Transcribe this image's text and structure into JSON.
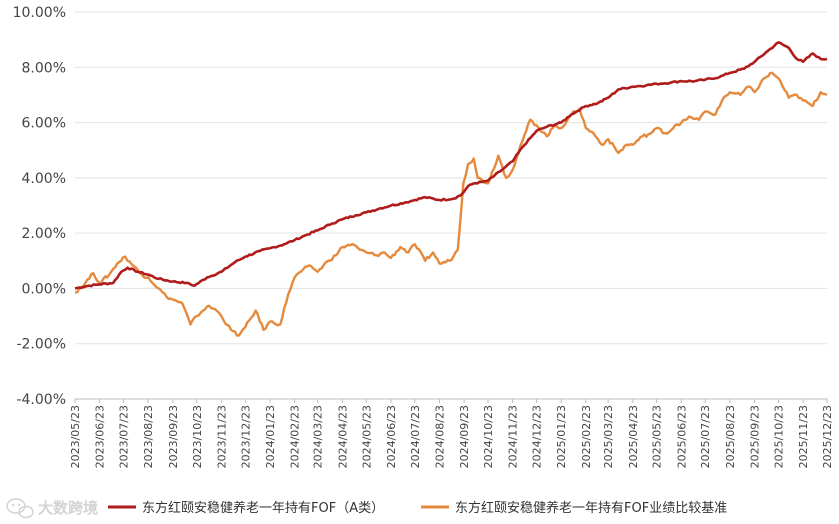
{
  "chart_data": {
    "type": "line",
    "ylim": [
      -4,
      10
    ],
    "yticks": [
      -4,
      -2,
      0,
      2,
      4,
      6,
      8,
      10
    ],
    "ytick_labels": [
      "-4.00%",
      "-2.00%",
      "0.00%",
      "2.00%",
      "4.00%",
      "6.00%",
      "8.00%",
      "10.00%"
    ],
    "x_labels": [
      "2023/05/23",
      "2023/06/23",
      "2023/07/23",
      "2023/08/23",
      "2023/09/23",
      "2023/10/23",
      "2023/11/23",
      "2023/12/23",
      "2024/01/23",
      "2024/02/23",
      "2024/03/23",
      "2024/04/23",
      "2024/05/23",
      "2024/06/23",
      "2024/07/23",
      "2024/08/23",
      "2024/09/23",
      "2024/10/23",
      "2024/11/23",
      "2024/12/23",
      "2025/01/23",
      "2025/02/23",
      "2025/03/23",
      "2025/04/23",
      "2025/05/23",
      "2025/06/23",
      "2025/07/23",
      "2025/08/23",
      "2025/09/23",
      "2025/10/23",
      "2025/11/23",
      "2025/12/23"
    ],
    "grid": "horizontal",
    "legend_position": "bottom",
    "series": [
      {
        "name": "东方红颐安稳健养老一年持有FOF（A类）",
        "color": "#b01c1c",
        "points": [
          [
            "2023/05/23",
            0.0
          ],
          [
            "2023/06/10",
            0.1
          ],
          [
            "2023/06/23",
            0.15
          ],
          [
            "2023/07/10",
            0.2
          ],
          [
            "2023/07/20",
            0.6
          ],
          [
            "2023/07/28",
            0.75
          ],
          [
            "2023/08/10",
            0.6
          ],
          [
            "2023/08/23",
            0.5
          ],
          [
            "2023/09/05",
            0.35
          ],
          [
            "2023/09/23",
            0.25
          ],
          [
            "2023/10/10",
            0.2
          ],
          [
            "2023/10/20",
            0.1
          ],
          [
            "2023/11/05",
            0.4
          ],
          [
            "2023/11/23",
            0.6
          ],
          [
            "2023/12/10",
            0.95
          ],
          [
            "2023/12/23",
            1.15
          ],
          [
            "2024/01/10",
            1.35
          ],
          [
            "2024/01/23",
            1.45
          ],
          [
            "2024/02/10",
            1.6
          ],
          [
            "2024/02/23",
            1.75
          ],
          [
            "2024/03/10",
            1.95
          ],
          [
            "2024/03/23",
            2.1
          ],
          [
            "2024/04/10",
            2.35
          ],
          [
            "2024/04/23",
            2.5
          ],
          [
            "2024/05/10",
            2.65
          ],
          [
            "2024/05/23",
            2.75
          ],
          [
            "2024/06/10",
            2.9
          ],
          [
            "2024/06/23",
            3.0
          ],
          [
            "2024/07/10",
            3.1
          ],
          [
            "2024/07/23",
            3.2
          ],
          [
            "2024/08/05",
            3.3
          ],
          [
            "2024/08/23",
            3.2
          ],
          [
            "2024/09/10",
            3.25
          ],
          [
            "2024/09/20",
            3.4
          ],
          [
            "2024/09/28",
            3.7
          ],
          [
            "2024/10/05",
            3.8
          ],
          [
            "2024/10/15",
            3.85
          ],
          [
            "2024/10/23",
            3.9
          ],
          [
            "2024/11/10",
            4.3
          ],
          [
            "2024/11/23",
            4.6
          ],
          [
            "2024/12/05",
            5.1
          ],
          [
            "2024/12/23",
            5.7
          ],
          [
            "2025/01/05",
            5.85
          ],
          [
            "2025/01/23",
            6.0
          ],
          [
            "2025/02/05",
            6.3
          ],
          [
            "2025/02/23",
            6.6
          ],
          [
            "2025/03/10",
            6.7
          ],
          [
            "2025/03/23",
            6.9
          ],
          [
            "2025/04/05",
            7.2
          ],
          [
            "2025/04/23",
            7.3
          ],
          [
            "2025/05/10",
            7.35
          ],
          [
            "2025/05/23",
            7.4
          ],
          [
            "2025/06/10",
            7.45
          ],
          [
            "2025/06/23",
            7.5
          ],
          [
            "2025/07/10",
            7.5
          ],
          [
            "2025/07/23",
            7.55
          ],
          [
            "2025/08/10",
            7.65
          ],
          [
            "2025/08/23",
            7.8
          ],
          [
            "2025/09/10",
            7.95
          ],
          [
            "2025/09/23",
            8.2
          ],
          [
            "2025/10/10",
            8.6
          ],
          [
            "2025/10/23",
            8.9
          ],
          [
            "2025/11/05",
            8.7
          ],
          [
            "2025/11/15",
            8.3
          ],
          [
            "2025/11/23",
            8.2
          ],
          [
            "2025/12/05",
            8.5
          ],
          [
            "2025/12/15",
            8.3
          ],
          [
            "2025/12/23",
            8.3
          ]
        ]
      },
      {
        "name": "东方红颐安稳健养老一年持有FOF业绩比较基准",
        "color": "#e58a3d",
        "points": [
          [
            "2023/05/23",
            -0.15
          ],
          [
            "2023/06/05",
            0.2
          ],
          [
            "2023/06/15",
            0.55
          ],
          [
            "2023/06/23",
            0.2
          ],
          [
            "2023/07/05",
            0.5
          ],
          [
            "2023/07/15",
            0.9
          ],
          [
            "2023/07/25",
            1.15
          ],
          [
            "2023/08/05",
            0.8
          ],
          [
            "2023/08/15",
            0.5
          ],
          [
            "2023/08/23",
            0.4
          ],
          [
            "2023/09/05",
            0.0
          ],
          [
            "2023/09/15",
            -0.3
          ],
          [
            "2023/09/23",
            -0.4
          ],
          [
            "2023/10/05",
            -0.55
          ],
          [
            "2023/10/15",
            -1.3
          ],
          [
            "2023/10/23",
            -1.0
          ],
          [
            "2023/11/05",
            -0.65
          ],
          [
            "2023/11/15",
            -0.75
          ],
          [
            "2023/11/23",
            -1.0
          ],
          [
            "2023/12/05",
            -1.5
          ],
          [
            "2023/12/15",
            -1.7
          ],
          [
            "2023/12/23",
            -1.4
          ],
          [
            "2024/01/05",
            -0.8
          ],
          [
            "2024/01/15",
            -1.5
          ],
          [
            "2024/01/23",
            -1.2
          ],
          [
            "2024/02/05",
            -1.3
          ],
          [
            "2024/02/15",
            -0.2
          ],
          [
            "2024/02/23",
            0.4
          ],
          [
            "2024/03/05",
            0.7
          ],
          [
            "2024/03/15",
            0.8
          ],
          [
            "2024/03/23",
            0.6
          ],
          [
            "2024/04/05",
            1.0
          ],
          [
            "2024/04/15",
            1.2
          ],
          [
            "2024/04/23",
            1.5
          ],
          [
            "2024/05/05",
            1.6
          ],
          [
            "2024/05/15",
            1.4
          ],
          [
            "2024/05/23",
            1.3
          ],
          [
            "2024/06/05",
            1.2
          ],
          [
            "2024/06/15",
            1.3
          ],
          [
            "2024/06/23",
            1.1
          ],
          [
            "2024/07/05",
            1.5
          ],
          [
            "2024/07/15",
            1.3
          ],
          [
            "2024/07/23",
            1.6
          ],
          [
            "2024/08/05",
            1.0
          ],
          [
            "2024/08/15",
            1.3
          ],
          [
            "2024/08/23",
            0.9
          ],
          [
            "2024/09/05",
            1.0
          ],
          [
            "2024/09/15",
            1.4
          ],
          [
            "2024/09/22",
            3.8
          ],
          [
            "2024/09/28",
            4.5
          ],
          [
            "2024/10/05",
            4.7
          ],
          [
            "2024/10/10",
            4.0
          ],
          [
            "2024/10/23",
            3.8
          ],
          [
            "2024/11/05",
            4.8
          ],
          [
            "2024/11/15",
            4.0
          ],
          [
            "2024/11/23",
            4.3
          ],
          [
            "2024/12/05",
            5.3
          ],
          [
            "2024/12/15",
            6.1
          ],
          [
            "2024/12/23",
            5.9
          ],
          [
            "2025/01/05",
            5.5
          ],
          [
            "2025/01/15",
            5.9
          ],
          [
            "2025/01/23",
            5.8
          ],
          [
            "2025/02/05",
            6.3
          ],
          [
            "2025/02/15",
            6.5
          ],
          [
            "2025/02/23",
            5.8
          ],
          [
            "2025/03/05",
            5.6
          ],
          [
            "2025/03/15",
            5.2
          ],
          [
            "2025/03/23",
            5.4
          ],
          [
            "2025/04/05",
            4.9
          ],
          [
            "2025/04/15",
            5.2
          ],
          [
            "2025/04/23",
            5.2
          ],
          [
            "2025/05/05",
            5.5
          ],
          [
            "2025/05/15",
            5.6
          ],
          [
            "2025/05/23",
            5.8
          ],
          [
            "2025/06/05",
            5.6
          ],
          [
            "2025/06/15",
            5.9
          ],
          [
            "2025/06/23",
            6.0
          ],
          [
            "2025/07/05",
            6.2
          ],
          [
            "2025/07/15",
            6.1
          ],
          [
            "2025/07/23",
            6.4
          ],
          [
            "2025/08/05",
            6.3
          ],
          [
            "2025/08/15",
            6.9
          ],
          [
            "2025/08/23",
            7.1
          ],
          [
            "2025/09/05",
            7.0
          ],
          [
            "2025/09/15",
            7.3
          ],
          [
            "2025/09/23",
            7.1
          ],
          [
            "2025/10/05",
            7.6
          ],
          [
            "2025/10/15",
            7.8
          ],
          [
            "2025/10/23",
            7.6
          ],
          [
            "2025/11/05",
            6.9
          ],
          [
            "2025/11/15",
            7.0
          ],
          [
            "2025/11/23",
            6.8
          ],
          [
            "2025/12/05",
            6.6
          ],
          [
            "2025/12/15",
            7.1
          ],
          [
            "2025/12/23",
            7.0
          ]
        ]
      }
    ]
  },
  "watermark": {
    "text": "大数跨境",
    "icon": "wechat-bubble-icon"
  }
}
